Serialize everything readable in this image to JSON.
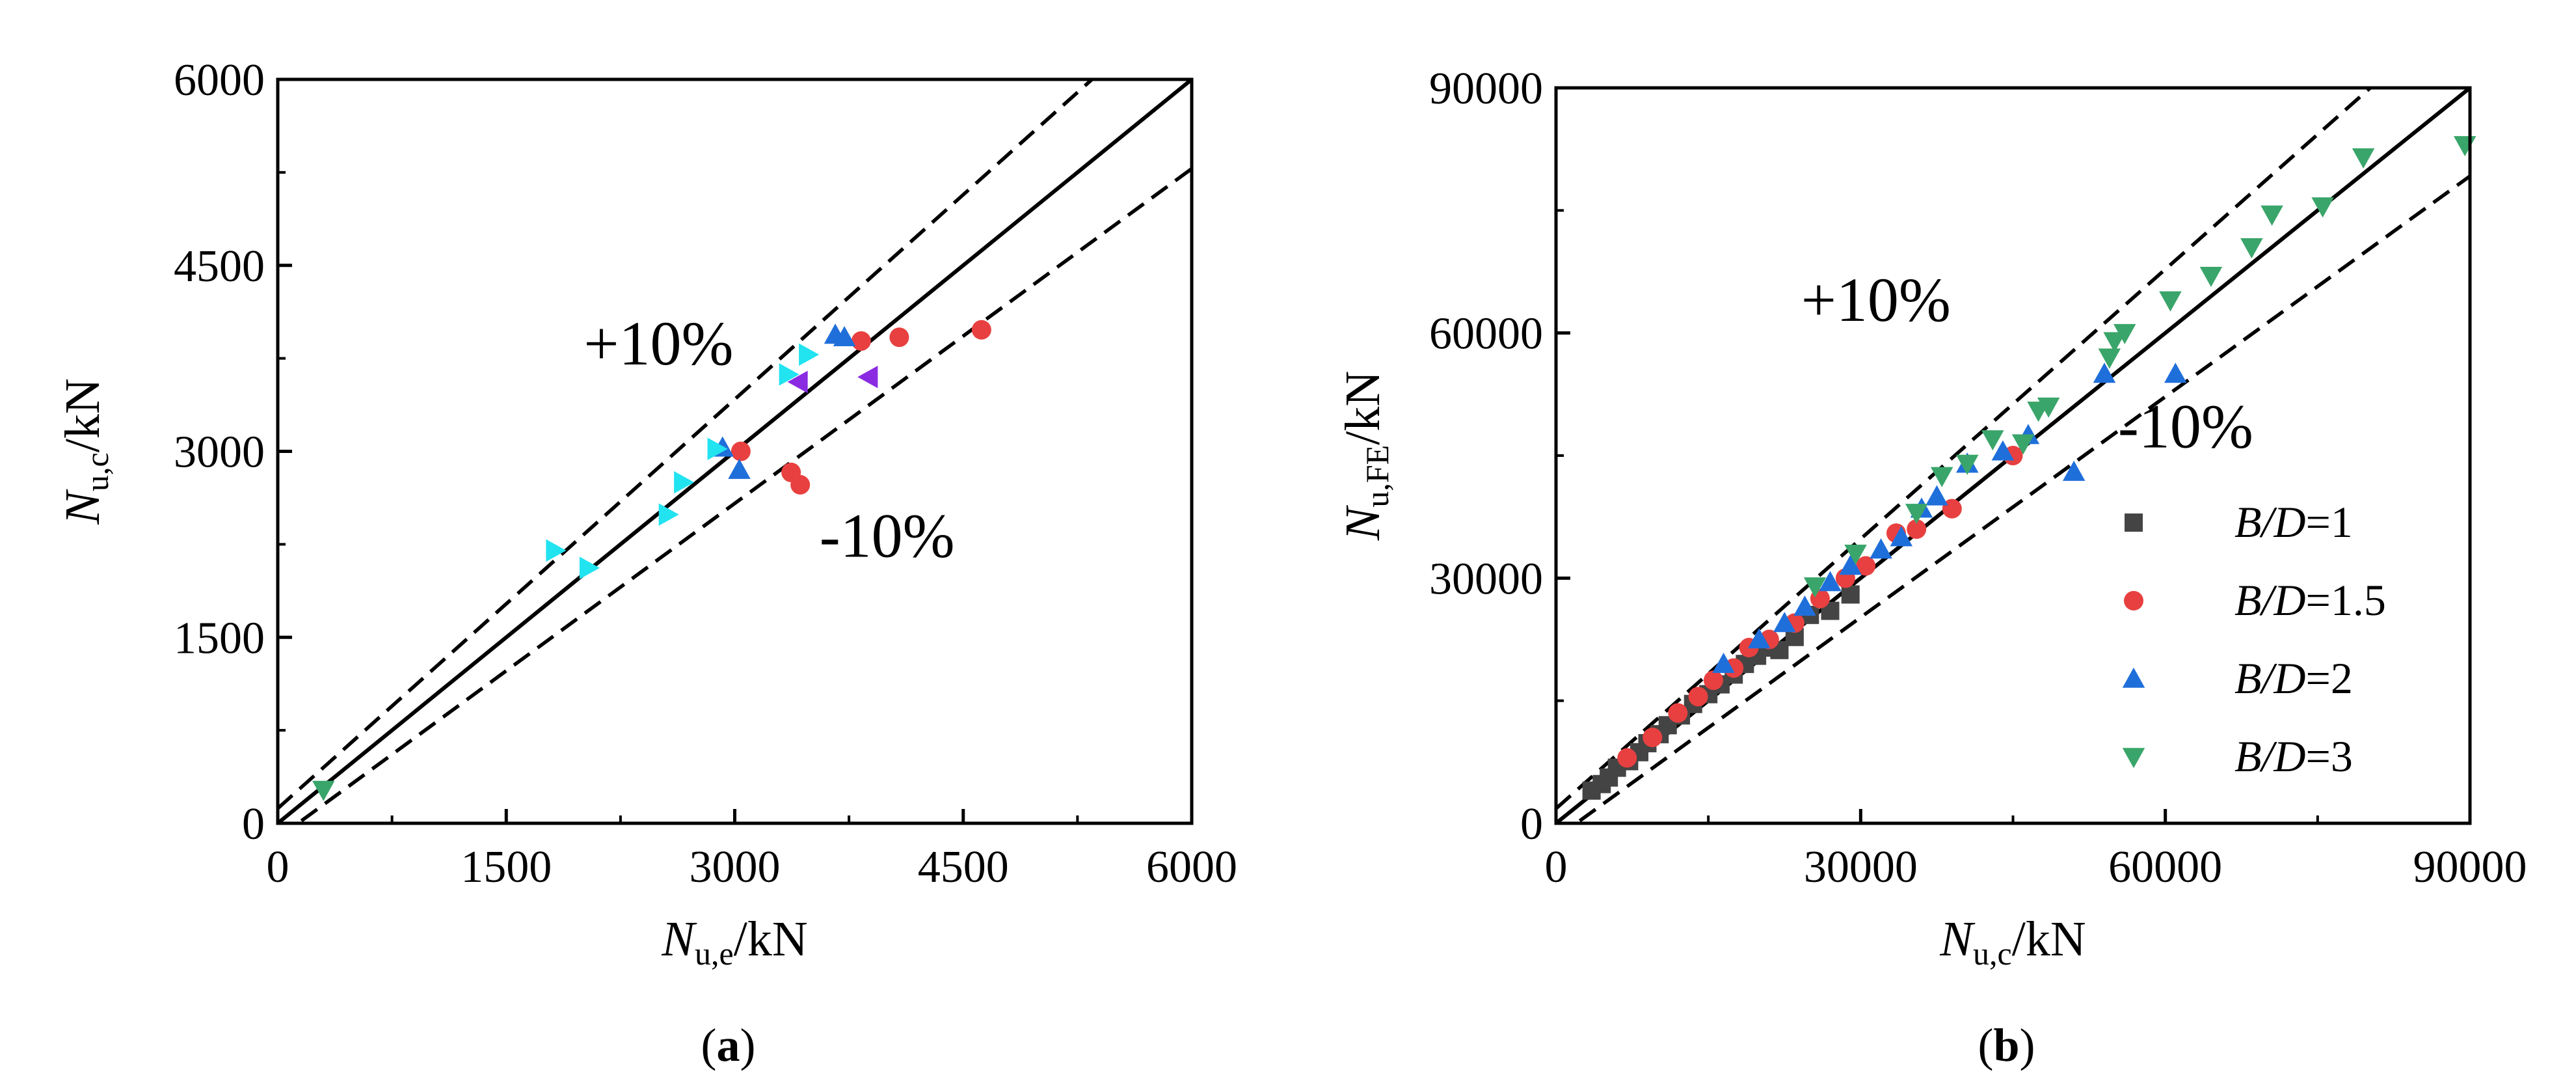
{
  "chart_data": [
    {
      "panel": "a",
      "type": "scatter",
      "caption_open": "(",
      "caption_letter": "a",
      "caption_close": ")",
      "xlabel": {
        "main": "N",
        "sub": "u,e",
        "unit": "/kN"
      },
      "ylabel": {
        "main": "N",
        "sub": "u,c",
        "unit": "/kN"
      },
      "xlim": [
        0,
        6000
      ],
      "ylim": [
        0,
        6000
      ],
      "xticks": [
        0,
        1500,
        3000,
        4500,
        6000
      ],
      "yticks": [
        0,
        1500,
        3000,
        4500,
        6000
      ],
      "reference_lines": [
        {
          "name": "equality",
          "style": "solid",
          "factor": 1.0
        },
        {
          "name": "plus-10-percent",
          "style": "dashed",
          "factor": 1.1
        },
        {
          "name": "minus-10-percent",
          "style": "dashed",
          "factor": 0.9
        }
      ],
      "annotations": [
        {
          "text": "+10%",
          "x": 2500,
          "y": 3700
        },
        {
          "text": "-10%",
          "x": 4000,
          "y": 2150
        }
      ],
      "series": [
        {
          "name": "group-green",
          "marker": "triangle-down",
          "color": "#3aa56a",
          "points": [
            [
              300,
              270
            ]
          ]
        },
        {
          "name": "group-red",
          "marker": "circle",
          "color": "#e84040",
          "points": [
            [
              3040,
              3000
            ],
            [
              3370,
              2830
            ],
            [
              3430,
              2730
            ],
            [
              3830,
              3890
            ],
            [
              4080,
              3920
            ],
            [
              4620,
              3980
            ]
          ]
        },
        {
          "name": "group-blue",
          "marker": "triangle-up",
          "color": "#1f6fdb",
          "points": [
            [
              2920,
              3030
            ],
            [
              3030,
              2850
            ],
            [
              3660,
              3940
            ],
            [
              3720,
              3920
            ]
          ]
        },
        {
          "name": "group-cyan",
          "marker": "triangle-right",
          "color": "#22e3f0",
          "points": [
            [
              1820,
              2200
            ],
            [
              2040,
              2060
            ],
            [
              2560,
              2490
            ],
            [
              2660,
              2750
            ],
            [
              2880,
              3020
            ],
            [
              3350,
              3620
            ],
            [
              3480,
              3780
            ]
          ]
        },
        {
          "name": "group-purple",
          "marker": "triangle-left",
          "color": "#8a2be2",
          "points": [
            [
              3420,
              3560
            ],
            [
              3880,
              3600
            ]
          ]
        }
      ]
    },
    {
      "panel": "b",
      "type": "scatter",
      "caption_open": "(",
      "caption_letter": "b",
      "caption_close": ")",
      "xlabel": {
        "main": "N",
        "sub": "u,c",
        "unit": "/kN"
      },
      "ylabel": {
        "main": "N",
        "sub": "u,FE",
        "unit": "/kN"
      },
      "xlim": [
        0,
        90000
      ],
      "ylim": [
        0,
        90000
      ],
      "xticks": [
        0,
        30000,
        60000,
        90000
      ],
      "yticks": [
        0,
        30000,
        60000,
        90000
      ],
      "reference_lines": [
        {
          "name": "equality",
          "style": "solid",
          "factor": 1.0
        },
        {
          "name": "plus-10-percent",
          "style": "dashed",
          "factor": 1.1
        },
        {
          "name": "minus-10-percent",
          "style": "dashed",
          "factor": 0.9
        }
      ],
      "annotations": [
        {
          "text": "+10%",
          "x": 31500,
          "y": 61500
        },
        {
          "text": "-10%",
          "x": 62000,
          "y": 46000
        }
      ],
      "legend_position": "bottom-right",
      "series": [
        {
          "name": "B/D=1",
          "label_main": "B/D",
          "label_value": "=1",
          "marker": "square",
          "color": "#444444",
          "points": [
            [
              3500,
              4000
            ],
            [
              4500,
              4800
            ],
            [
              5200,
              5600
            ],
            [
              6000,
              6800
            ],
            [
              7200,
              7600
            ],
            [
              8200,
              8700
            ],
            [
              9000,
              9800
            ],
            [
              10200,
              10900
            ],
            [
              11000,
              12000
            ],
            [
              12300,
              13200
            ],
            [
              13500,
              14600
            ],
            [
              15000,
              15800
            ],
            [
              16200,
              17000
            ],
            [
              17500,
              18200
            ],
            [
              18600,
              19500
            ],
            [
              19800,
              20500
            ],
            [
              20800,
              21500
            ],
            [
              22000,
              21200
            ],
            [
              23500,
              22800
            ],
            [
              25000,
              25500
            ],
            [
              27000,
              26000
            ],
            [
              29000,
              28000
            ]
          ]
        },
        {
          "name": "B/D=1.5",
          "label_main": "B/D",
          "label_value": "=1.5",
          "marker": "circle",
          "color": "#e84040",
          "points": [
            [
              7000,
              8000
            ],
            [
              9500,
              10500
            ],
            [
              12000,
              13500
            ],
            [
              14000,
              15500
            ],
            [
              15500,
              17500
            ],
            [
              17500,
              19000
            ],
            [
              19000,
              21500
            ],
            [
              21000,
              22500
            ],
            [
              23500,
              24500
            ],
            [
              26000,
              27500
            ],
            [
              28500,
              30000
            ],
            [
              30500,
              31500
            ],
            [
              33500,
              35500
            ],
            [
              35500,
              36000
            ],
            [
              39000,
              38500
            ],
            [
              45000,
              45000
            ]
          ]
        },
        {
          "name": "B/D=2",
          "label_main": "B/D",
          "label_value": "=2",
          "marker": "triangle-up",
          "color": "#1f6fdb",
          "points": [
            [
              16500,
              19500
            ],
            [
              20000,
              22500
            ],
            [
              22500,
              24500
            ],
            [
              24500,
              26500
            ],
            [
              27000,
              29500
            ],
            [
              29000,
              31500
            ],
            [
              32000,
              33500
            ],
            [
              34000,
              35000
            ],
            [
              36000,
              38500
            ],
            [
              37500,
              40000
            ],
            [
              40500,
              44000
            ],
            [
              44000,
              45500
            ],
            [
              46500,
              47500
            ],
            [
              51000,
              43000
            ],
            [
              54000,
              55000
            ],
            [
              61000,
              55000
            ]
          ]
        },
        {
          "name": "B/D=3",
          "label_main": "B/D",
          "label_value": "=3",
          "marker": "triangle-down",
          "color": "#3aa56a",
          "points": [
            [
              25500,
              29000
            ],
            [
              29500,
              33000
            ],
            [
              35500,
              38000
            ],
            [
              38000,
              42500
            ],
            [
              40500,
              44000
            ],
            [
              43000,
              47000
            ],
            [
              46000,
              46500
            ],
            [
              47500,
              50500
            ],
            [
              48500,
              51000
            ],
            [
              54500,
              57000
            ],
            [
              55000,
              59000
            ],
            [
              56000,
              60000
            ],
            [
              60500,
              64000
            ],
            [
              64500,
              67000
            ],
            [
              68500,
              70500
            ],
            [
              70500,
              74500
            ],
            [
              75500,
              75500
            ],
            [
              79500,
              81500
            ],
            [
              89500,
              83000
            ]
          ]
        }
      ]
    }
  ]
}
